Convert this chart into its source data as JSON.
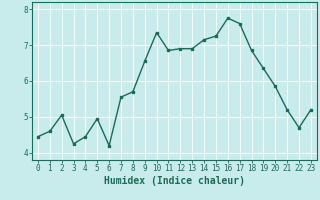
{
  "title": "",
  "xlabel": "Humidex (Indice chaleur)",
  "ylabel": "",
  "x_values": [
    0,
    1,
    2,
    3,
    4,
    5,
    6,
    7,
    8,
    9,
    10,
    11,
    12,
    13,
    14,
    15,
    16,
    17,
    18,
    19,
    20,
    21,
    22,
    23
  ],
  "y_values": [
    4.45,
    4.6,
    5.05,
    4.25,
    4.45,
    4.95,
    4.2,
    5.55,
    5.7,
    6.55,
    7.35,
    6.85,
    6.9,
    6.9,
    7.15,
    7.25,
    7.75,
    7.6,
    6.85,
    6.35,
    5.85,
    5.2,
    4.7,
    5.2
  ],
  "line_color": "#1a6b5a",
  "marker": "s",
  "marker_size": 2,
  "bg_color": "#c8ecec",
  "grid_color": "#ffffff",
  "grid_minor_color": "#ddf0f0",
  "axes_color": "#1a6b5a",
  "tick_color": "#1a6b5a",
  "ylim": [
    3.8,
    8.2
  ],
  "xlim": [
    -0.5,
    23.5
  ],
  "yticks": [
    4,
    5,
    6,
    7,
    8
  ],
  "xticks": [
    0,
    1,
    2,
    3,
    4,
    5,
    6,
    7,
    8,
    9,
    10,
    11,
    12,
    13,
    14,
    15,
    16,
    17,
    18,
    19,
    20,
    21,
    22,
    23
  ],
  "tick_fontsize": 5.5,
  "xlabel_fontsize": 7,
  "linewidth": 1.0
}
